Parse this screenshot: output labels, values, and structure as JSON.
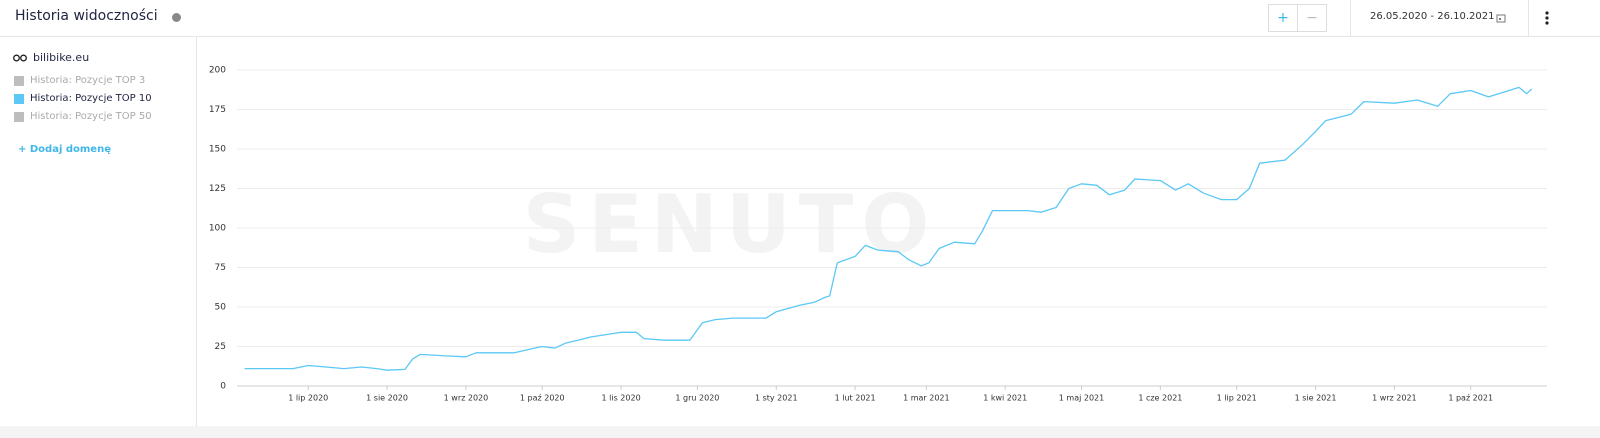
{
  "header": {
    "title": "Historia widoczności",
    "zoom_in": "+",
    "zoom_out": "−",
    "date_range": "26.05.2020 - 26.10.2021"
  },
  "sidebar": {
    "domain": "bilibike.eu",
    "legend": [
      {
        "label": "Historia: Pozycje TOP 3",
        "color": "#bdbdbd"
      },
      {
        "label": "Historia: Pozycje TOP 10",
        "color": "#5bc8f5"
      },
      {
        "label": "Historia: Pozycje TOP 50",
        "color": "#bdbdbd"
      }
    ],
    "add_domain": "+ Dodaj domenę"
  },
  "chart_data": {
    "type": "line",
    "watermark": "SENUTO",
    "x": [
      "2020-06-06",
      "2020-06-25",
      "2020-07-01",
      "2020-07-08",
      "2020-07-15",
      "2020-07-22",
      "2020-07-28",
      "2020-08-01",
      "2020-08-08",
      "2020-08-11",
      "2020-08-14",
      "2020-08-25",
      "2020-09-01",
      "2020-09-05",
      "2020-09-20",
      "2020-09-28",
      "2020-10-01",
      "2020-10-06",
      "2020-10-10",
      "2020-10-15",
      "2020-10-20",
      "2020-10-28",
      "2020-11-01",
      "2020-11-07",
      "2020-11-10",
      "2020-11-18",
      "2020-11-28",
      "2020-12-03",
      "2020-12-08",
      "2020-12-15",
      "2020-12-28",
      "2021-01-01",
      "2021-01-10",
      "2021-01-16",
      "2021-01-20",
      "2021-01-22",
      "2021-01-25",
      "2021-02-01",
      "2021-02-05",
      "2021-02-10",
      "2021-02-18",
      "2021-02-22",
      "2021-02-27",
      "2021-03-02",
      "2021-03-06",
      "2021-03-12",
      "2021-03-20",
      "2021-03-23",
      "2021-03-27",
      "2021-04-10",
      "2021-04-15",
      "2021-04-21",
      "2021-04-26",
      "2021-05-01",
      "2021-05-07",
      "2021-05-12",
      "2021-05-18",
      "2021-05-22",
      "2021-06-01",
      "2021-06-07",
      "2021-06-12",
      "2021-06-18",
      "2021-06-25",
      "2021-07-01",
      "2021-07-06",
      "2021-07-10",
      "2021-07-20",
      "2021-07-27",
      "2021-08-01",
      "2021-08-05",
      "2021-08-15",
      "2021-08-20",
      "2021-09-01",
      "2021-09-10",
      "2021-09-18",
      "2021-09-23",
      "2021-10-01",
      "2021-10-08",
      "2021-10-14",
      "2021-10-20",
      "2021-10-23",
      "2021-10-25"
    ],
    "series": [
      {
        "color": "#5bc8f5",
        "values": [
          11,
          11,
          13,
          12,
          11,
          12,
          11,
          10,
          10.5,
          17,
          20,
          19,
          18.5,
          21,
          21,
          24,
          25,
          24,
          27,
          29,
          31,
          33,
          34,
          34,
          30,
          29,
          29,
          40,
          42,
          43,
          43,
          47,
          51,
          53,
          56,
          57,
          78,
          82,
          89,
          86,
          85,
          80,
          76,
          78,
          87,
          91,
          90,
          98,
          111,
          111,
          110,
          113,
          125,
          128,
          127,
          121,
          124,
          131,
          130,
          124,
          128,
          122,
          118,
          118,
          125,
          141,
          143,
          153,
          161,
          168,
          172,
          180,
          179,
          181,
          177,
          185,
          187,
          183,
          186,
          189,
          185,
          188
        ]
      }
    ],
    "xlim": [
      "2020-06-03",
      "2021-10-31"
    ],
    "xticks": [
      {
        "value": "2020-07-01",
        "label": "1 lip 2020"
      },
      {
        "value": "2020-08-01",
        "label": "1 sie 2020"
      },
      {
        "value": "2020-09-01",
        "label": "1 wrz 2020"
      },
      {
        "value": "2020-10-01",
        "label": "1 paź 2020"
      },
      {
        "value": "2020-11-01",
        "label": "1 lis 2020"
      },
      {
        "value": "2020-12-01",
        "label": "1 gru 2020"
      },
      {
        "value": "2021-01-01",
        "label": "1 sty 2021"
      },
      {
        "value": "2021-02-01",
        "label": "1 lut 2021"
      },
      {
        "value": "2021-03-01",
        "label": "1 mar 2021"
      },
      {
        "value": "2021-04-01",
        "label": "1 kwi 2021"
      },
      {
        "value": "2021-05-01",
        "label": "1 maj 2021"
      },
      {
        "value": "2021-06-01",
        "label": "1 cze 2021"
      },
      {
        "value": "2021-07-01",
        "label": "1 lip 2021"
      },
      {
        "value": "2021-08-01",
        "label": "1 sie 2021"
      },
      {
        "value": "2021-09-01",
        "label": "1 wrz 2021"
      },
      {
        "value": "2021-10-01",
        "label": "1 paź 2021"
      }
    ],
    "ylim": [
      0,
      200
    ],
    "yticks": [
      0,
      25,
      50,
      75,
      100,
      125,
      150,
      175,
      200
    ],
    "grid": true
  }
}
